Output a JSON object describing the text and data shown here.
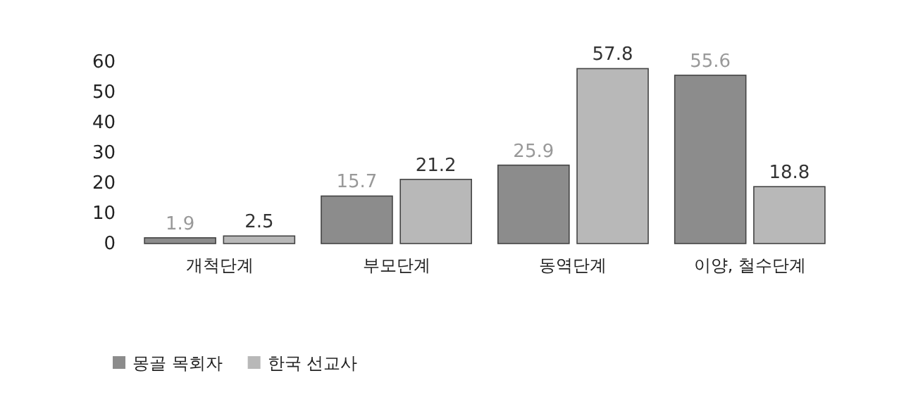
{
  "chart_data": {
    "type": "bar",
    "categories": [
      "개척단계",
      "부모단계",
      "동역단계",
      "이양, 철수단계"
    ],
    "series": [
      {
        "name": "몽골 목회자",
        "color": "#8c8c8c",
        "values": [
          1.9,
          15.7,
          25.9,
          55.6
        ]
      },
      {
        "name": "한국 선교사",
        "color": "#b8b8b8",
        "values": [
          2.5,
          21.2,
          57.8,
          18.8
        ]
      }
    ],
    "ylim": [
      0,
      60
    ],
    "yticks": [
      0,
      10,
      20,
      30,
      40,
      50,
      60
    ],
    "data_labels": true,
    "legend": "bottom left",
    "grid": false
  }
}
